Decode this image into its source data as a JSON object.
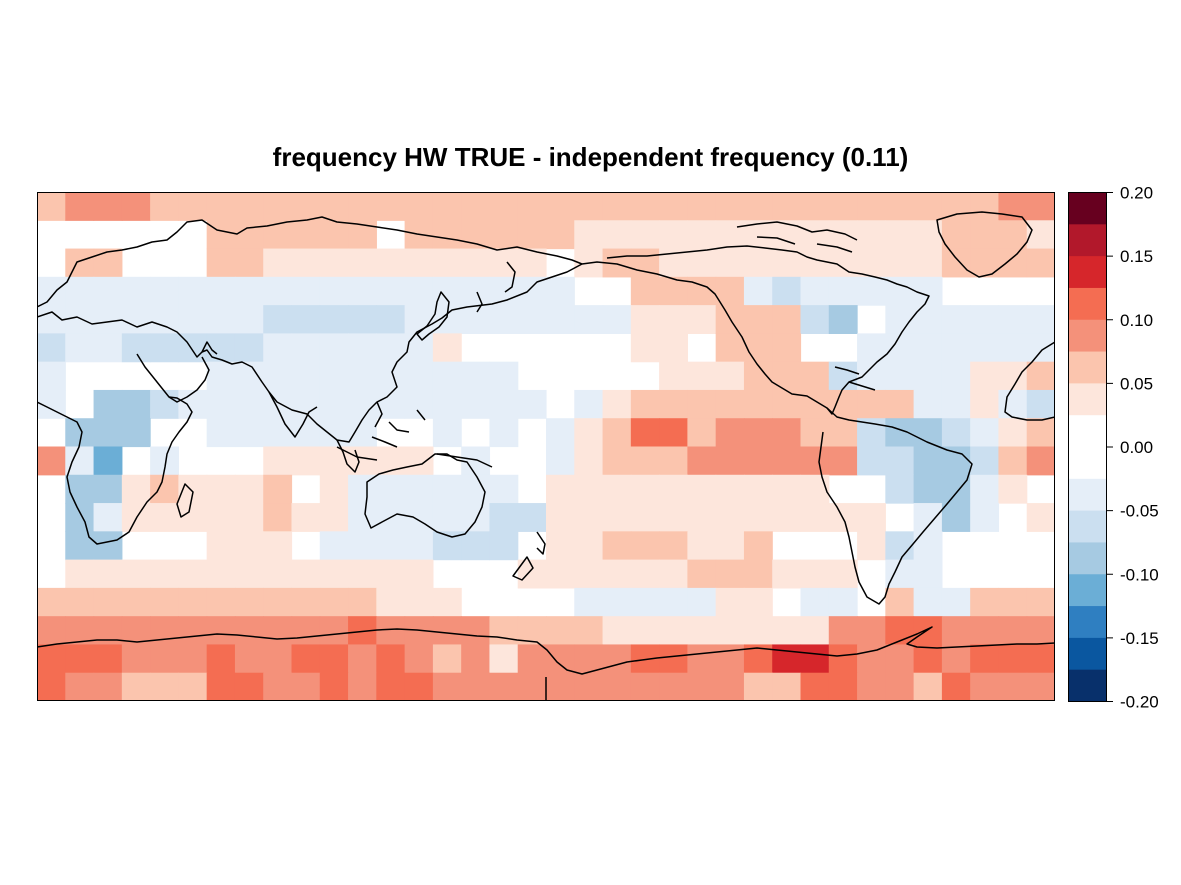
{
  "map": {
    "title": "frequency HW TRUE - independent frequency (0.11)",
    "projection": "equirectangular, Pacific-centred",
    "grid": {
      "rows": 18,
      "cols": 36
    },
    "colorbar": {
      "labels": [
        "0.20",
        "0.15",
        "0.10",
        "0.05",
        "0.00",
        "-0.05",
        "-0.10",
        "-0.15",
        "-0.20"
      ],
      "colors_top_to_bottom": [
        "#67001f",
        "#b2182b",
        "#d6262b",
        "#f46d52",
        "#f4917a",
        "#fbc5ae",
        "#fde6dc",
        "#ffffff",
        "#ffffff",
        "#e5eef8",
        "#cbdff0",
        "#a6cae2",
        "#6baed6",
        "#2f7fc1",
        "#0a57a0",
        "#08306b"
      ]
    },
    "cell_codes": {
      "_": "#ffffff",
      "a": "#fde6dc",
      "b": "#fbc5ae",
      "c": "#f4917a",
      "d": "#f46d52",
      "e": "#d6262b",
      "1": "#e5eef8",
      "2": "#cbdff0",
      "3": "#a6cae2",
      "4": "#6baed6"
    },
    "cells": [
      "bcccbbbbbbbbbbbbbbbbbbbbbbbbbbbbbbcc",
      "______bbbbbb_bbbbbbaaaaaaaaaaaaabbba",
      "_bb___bbaaaaaaaaaa_abbaaaaaaaaaabbbb",
      "1111111111111111111__bbbb1211111____",
      "111111112222211111111aaabbb23_111111",
      "21122222111111a______aa_bbb__1111111",
      "1_____11111111111_____aaabbb21111aab",
      "1_3321111111111111_1abbbbbbbbbb11a12",
      "_333__111111__1_1_1abddbcccbb23321ab",
      "c14_1___aaaaaa_1__1abbbcccccc22332bc",
      "_33abaaab_a111111_aaaaaaaaaa__2331a_",
      "_31aaaaabaa1111122aaaaaaaaaaaa_131_a",
      "_33___aaa_1111222_aabbbaab___a21____",
      "_aaaaaaaaaaaaa___aaaaaabbbaaa_11____",
      "bbbbbbbbbbbbaaa____11111aa_11_b11bbb",
      "cccccccccccdccccbbbbaaaaaaaaccddcccc",
      "dddcccdccddcdcbcaccccddccdeedccdcddd",
      "dccbbbddccdcddcccccccccccbbddccbdccc"
    ]
  }
}
